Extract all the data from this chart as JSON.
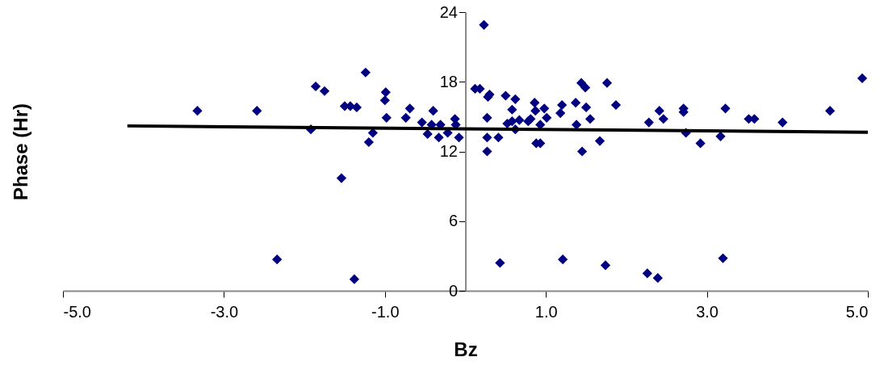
{
  "chart_data": {
    "type": "scatter",
    "xlabel": "Bz",
    "ylabel": "Phase (Hr)",
    "xlim": [
      -5,
      5
    ],
    "ylim": [
      0,
      24
    ],
    "xticks": [
      {
        "value": -5,
        "label": "-5.0"
      },
      {
        "value": -3,
        "label": "-3.0"
      },
      {
        "value": -1,
        "label": "-1.0"
      },
      {
        "value": 1,
        "label": "1.0"
      },
      {
        "value": 3,
        "label": "3.0"
      },
      {
        "value": 5,
        "label": "5.0"
      }
    ],
    "yticks": [
      0,
      6,
      12,
      18,
      24
    ],
    "grid": false,
    "series": [
      {
        "marker": "diamond",
        "color": "#000080",
        "x": [
          -3.33,
          -2.59,
          -2.34,
          -1.92,
          -1.86,
          -1.75,
          -1.54,
          -1.5,
          -1.43,
          -1.35,
          -1.38,
          -1.24,
          -1.2,
          -1.15,
          -0.99,
          -1.0,
          -0.98,
          -0.74,
          -0.69,
          -0.54,
          -0.47,
          -0.42,
          -0.4,
          -0.33,
          -0.31,
          -0.22,
          -0.13,
          -0.12,
          -0.08,
          0.23,
          0.12,
          0.18,
          0.28,
          0.3,
          0.27,
          0.27,
          0.27,
          0.41,
          0.43,
          0.5,
          0.62,
          0.58,
          0.52,
          0.58,
          0.62,
          0.67,
          0.78,
          0.81,
          0.86,
          0.87,
          0.88,
          0.93,
          0.93,
          0.98,
          1.01,
          1.18,
          1.2,
          1.21,
          1.37,
          1.38,
          1.44,
          1.49,
          1.5,
          1.45,
          1.55,
          1.67,
          1.74,
          1.76,
          1.87,
          2.26,
          2.39,
          2.28,
          2.41,
          2.46,
          2.71,
          2.71,
          2.74,
          2.92,
          3.17,
          3.23,
          3.2,
          3.52,
          3.59,
          3.94,
          4.53,
          4.93
        ],
        "values": [
          15.5,
          15.5,
          2.7,
          13.9,
          17.6,
          17.2,
          9.7,
          15.9,
          15.9,
          15.8,
          1.0,
          18.8,
          12.8,
          13.6,
          17.1,
          16.4,
          14.9,
          14.9,
          15.7,
          14.5,
          13.5,
          14.3,
          15.5,
          13.2,
          14.3,
          13.6,
          14.8,
          14.3,
          13.2,
          22.9,
          17.4,
          17.4,
          16.7,
          16.9,
          14.9,
          13.2,
          12.0,
          13.2,
          2.4,
          16.8,
          16.5,
          15.6,
          14.4,
          14.6,
          13.9,
          14.7,
          14.6,
          14.8,
          16.2,
          15.5,
          12.7,
          12.7,
          14.3,
          15.7,
          14.9,
          15.3,
          16.0,
          2.7,
          16.2,
          14.3,
          17.9,
          17.5,
          15.8,
          12.0,
          14.8,
          12.9,
          2.2,
          17.9,
          16.0,
          1.5,
          1.1,
          14.5,
          15.5,
          14.8,
          15.7,
          15.4,
          13.6,
          12.7,
          13.3,
          15.7,
          2.8,
          14.8,
          14.8,
          14.5,
          15.5,
          18.3
        ]
      },
      {
        "type": "line",
        "line_style": "solid",
        "marker": "none",
        "color": "#000000",
        "x": [
          -4.2,
          5
        ],
        "values": [
          14.2,
          13.65
        ]
      }
    ]
  }
}
